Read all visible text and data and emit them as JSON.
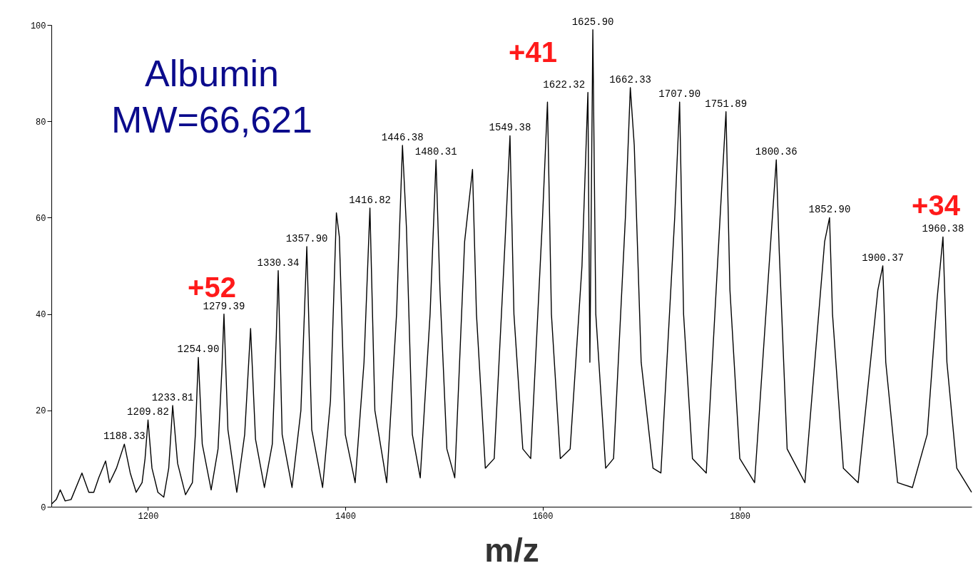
{
  "chart_data": {
    "type": "line",
    "title": "Albumin",
    "subtitle": "MW=66,621",
    "xlabel": "m/z",
    "xlim": [
      1102,
      2035
    ],
    "xticks": [
      {
        "value": 1200,
        "label": "1200"
      },
      {
        "value": 1400,
        "label": "1400"
      },
      {
        "value": 1600,
        "label": "1600"
      },
      {
        "value": 1800,
        "label": "1800"
      }
    ],
    "ylim": [
      0,
      100
    ],
    "yticks": [
      0,
      20,
      40,
      60,
      80,
      100
    ],
    "marker": "none",
    "line_style": "solid",
    "series": [
      {
        "color": "#000000",
        "x": [
          1102,
          1107,
          1111,
          1116,
          1122,
          1133,
          1140,
          1145,
          1150,
          1157,
          1161,
          1168,
          1176,
          1182,
          1188,
          1194,
          1197,
          1200,
          1204,
          1210,
          1216,
          1221,
          1225,
          1230,
          1238,
          1245,
          1248,
          1251,
          1255,
          1264,
          1271,
          1275,
          1277,
          1281,
          1290,
          1298,
          1304,
          1309,
          1318,
          1326,
          1330,
          1332,
          1336,
          1346,
          1355,
          1361,
          1366,
          1377,
          1385,
          1391,
          1394,
          1400,
          1410,
          1419,
          1425,
          1430,
          1442,
          1452,
          1458,
          1462,
          1468,
          1476,
          1486,
          1492,
          1496,
          1503,
          1511,
          1521,
          1529,
          1533,
          1542,
          1551,
          1562,
          1567,
          1571,
          1580,
          1588,
          1600,
          1605,
          1609,
          1618,
          1628,
          1640,
          1646,
          1648,
          1651,
          1654,
          1664,
          1672,
          1684,
          1689,
          1693,
          1700,
          1712,
          1720,
          1734,
          1739,
          1743,
          1752,
          1766,
          1780,
          1786,
          1790,
          1800,
          1815,
          1832,
          1837,
          1840,
          1848,
          1866,
          1886,
          1891,
          1894,
          1905,
          1920,
          1940,
          1945,
          1948,
          1960,
          1975,
          1990,
          2000,
          2006,
          2010,
          2020,
          2035
        ],
        "values": [
          0.5,
          1.5,
          3.5,
          1.2,
          1.5,
          7,
          3,
          3,
          6,
          9.5,
          5,
          8,
          13,
          7,
          3,
          5,
          10,
          18,
          8,
          3,
          2,
          8,
          21,
          9,
          2.5,
          5,
          15,
          31,
          13,
          3.5,
          12,
          29,
          40,
          16,
          3,
          15,
          37,
          14,
          4,
          13,
          35,
          49,
          15,
          4,
          20,
          54,
          16,
          4,
          22,
          61,
          56,
          15,
          5,
          30,
          62,
          20,
          5,
          40,
          75,
          58,
          15,
          6,
          40,
          72,
          45,
          12,
          6,
          55,
          70,
          40,
          8,
          10,
          55,
          77,
          40,
          12,
          10,
          60,
          84,
          40,
          10,
          12,
          50,
          86,
          30,
          99,
          40,
          8,
          10,
          60,
          87,
          75,
          30,
          8,
          7,
          60,
          84,
          40,
          10,
          7,
          60,
          82,
          45,
          10,
          5,
          57,
          72,
          53,
          12,
          5,
          55,
          60,
          40,
          8,
          5,
          45,
          50,
          30,
          5,
          4,
          15,
          43,
          56,
          30,
          8,
          3
        ]
      }
    ],
    "annotations": [
      {
        "text": "1188.33",
        "x": 1176,
        "y": 13
      },
      {
        "text": "1209.82",
        "x": 1200,
        "y": 18
      },
      {
        "text": "1233.81",
        "x": 1225,
        "y": 21
      },
      {
        "text": "1254.90",
        "x": 1251,
        "y": 31
      },
      {
        "text": "1279.39",
        "x": 1277,
        "y": 40
      },
      {
        "text": "1330.34",
        "x": 1332,
        "y": 49
      },
      {
        "text": "1357.90",
        "x": 1361,
        "y": 54
      },
      {
        "text": "1416.82",
        "x": 1425,
        "y": 62
      },
      {
        "text": "1446.38",
        "x": 1458,
        "y": 75
      },
      {
        "text": "1480.31",
        "x": 1492,
        "y": 72
      },
      {
        "text": "1549.38",
        "x": 1567,
        "y": 77
      },
      {
        "text": "1622.32",
        "x": 1646,
        "y": 86
      },
      {
        "text": "1625.90",
        "x": 1651,
        "y": 99
      },
      {
        "text": "1662.33",
        "x": 1689,
        "y": 87
      },
      {
        "text": "1707.90",
        "x": 1739,
        "y": 84
      },
      {
        "text": "1751.89",
        "x": 1786,
        "y": 82
      },
      {
        "text": "1800.36",
        "x": 1837,
        "y": 72
      },
      {
        "text": "1852.90",
        "x": 1891,
        "y": 60
      },
      {
        "text": "1900.37",
        "x": 1945,
        "y": 50
      },
      {
        "text": "1960.38",
        "x": 2006,
        "y": 56
      },
      "+52",
      "+41",
      "+34"
    ]
  }
}
